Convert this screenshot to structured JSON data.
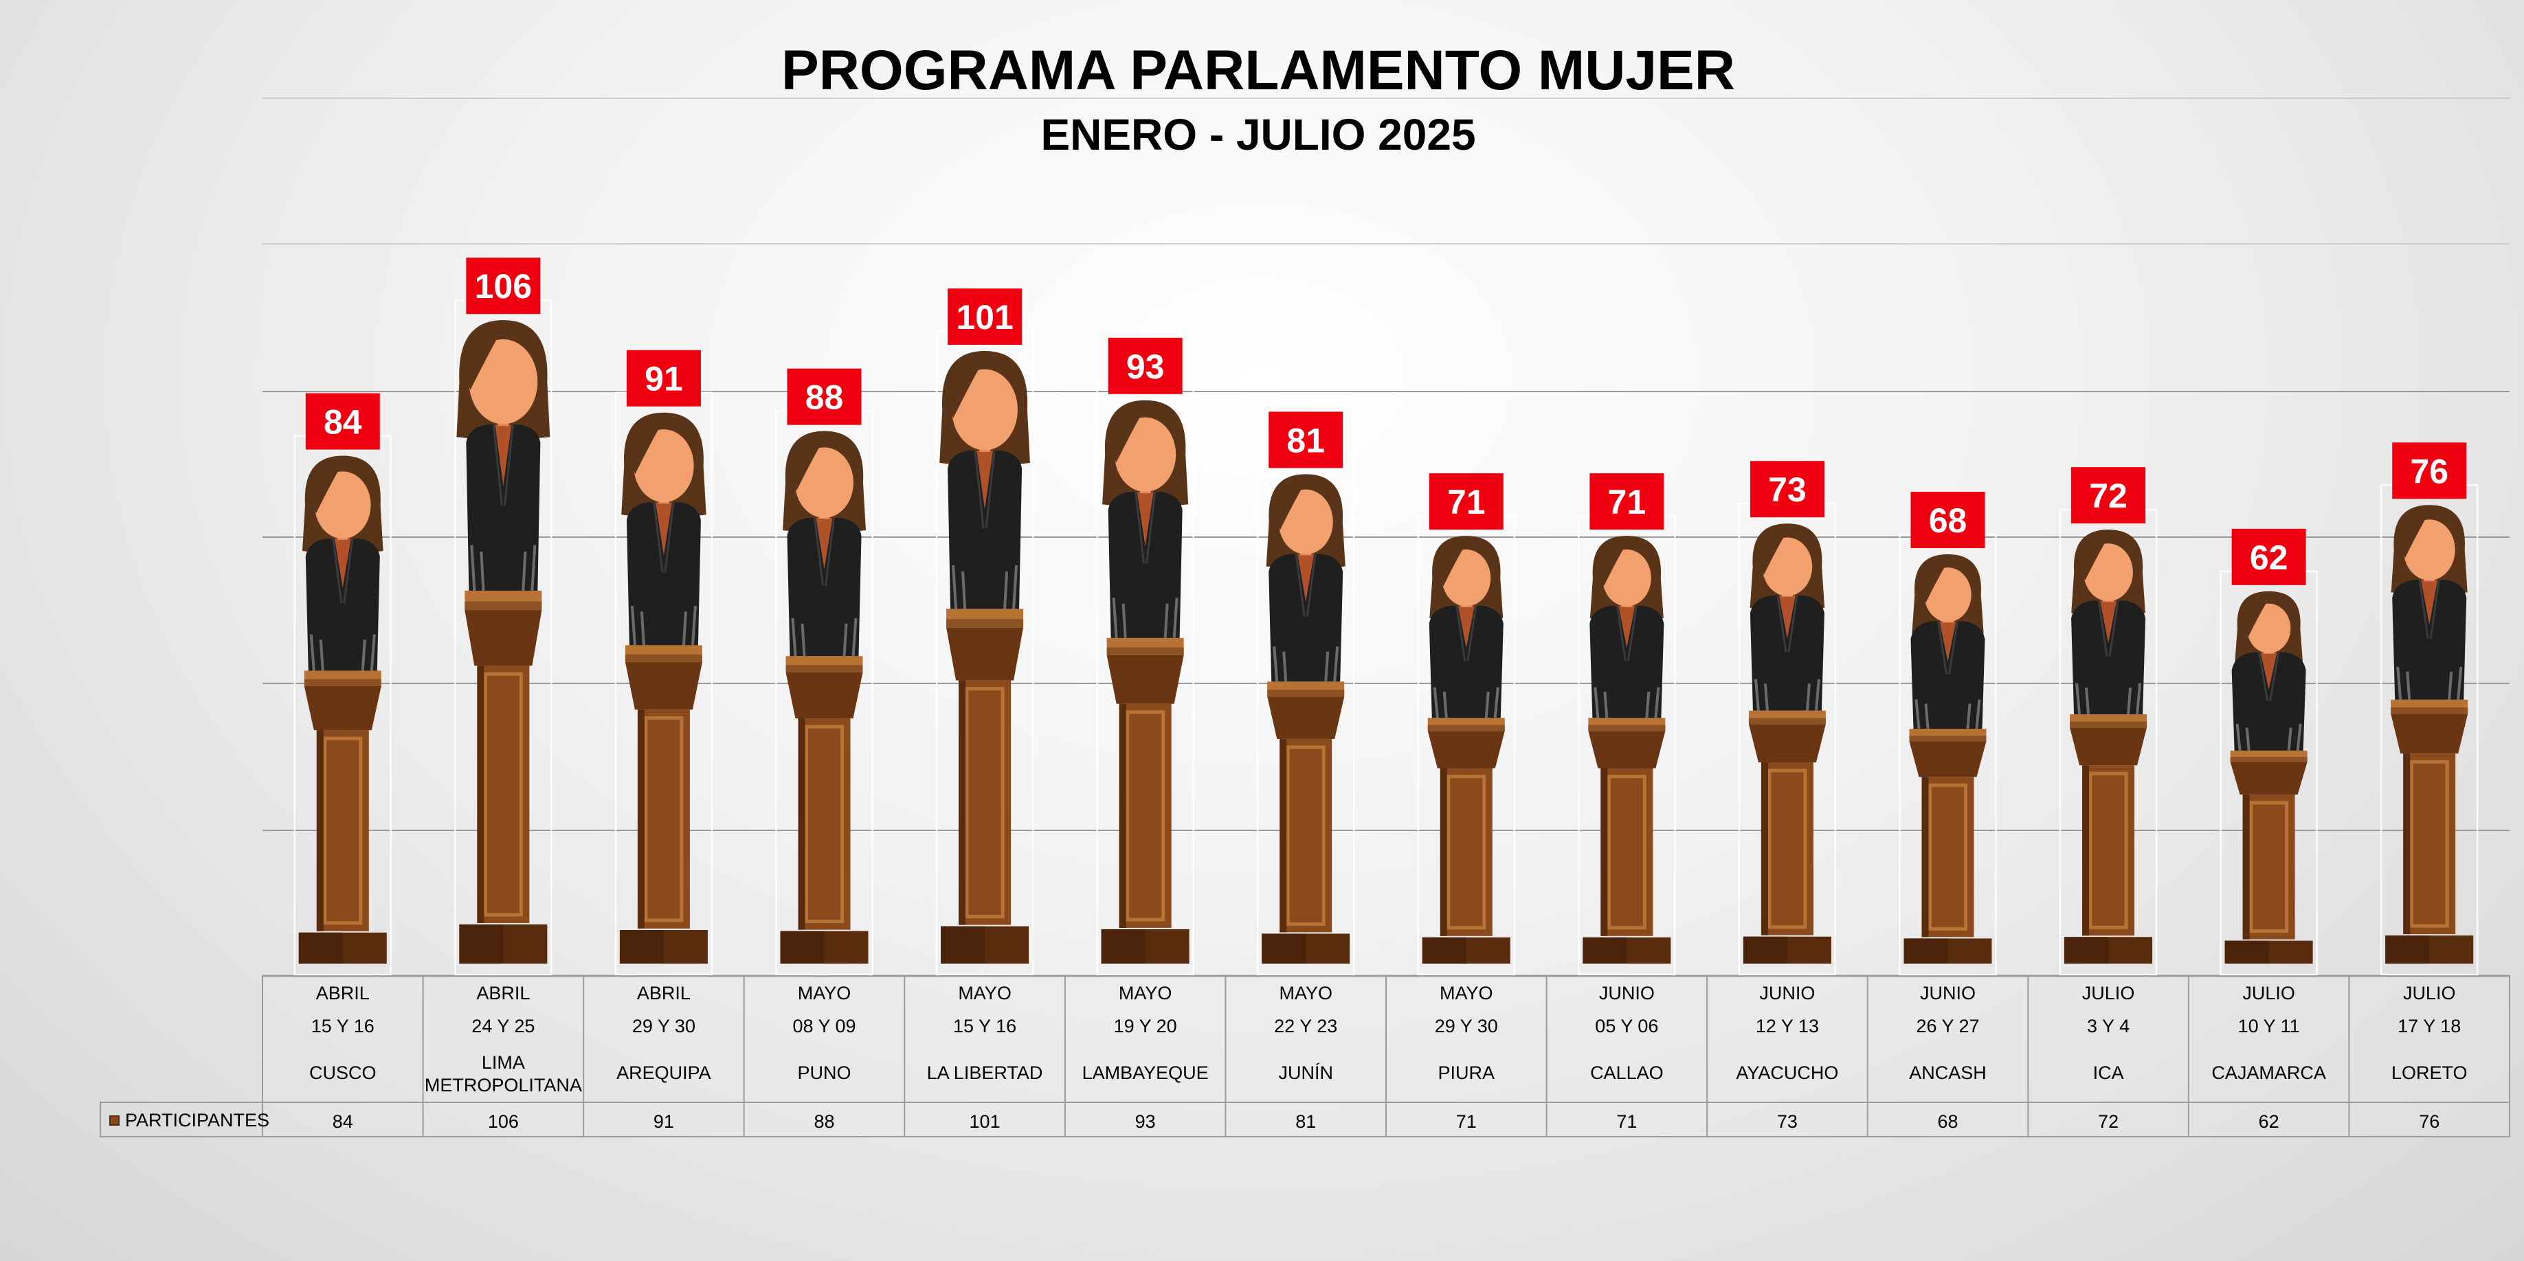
{
  "chart_data": {
    "type": "bar",
    "title": "PROGRAMA PARLAMENTO MUJER",
    "subtitle": "ENERO - JULIO 2025",
    "series": [
      {
        "name": "PARTICIPANTES",
        "values": [
          84,
          106,
          91,
          88,
          101,
          93,
          81,
          71,
          71,
          73,
          68,
          72,
          62,
          76
        ]
      }
    ],
    "categories": [
      {
        "month": "ABRIL",
        "days": "15 Y 16",
        "place": [
          "CUSCO"
        ]
      },
      {
        "month": "ABRIL",
        "days": "24 Y 25",
        "place": [
          "LIMA",
          "METROPOLITANA"
        ]
      },
      {
        "month": "ABRIL",
        "days": "29 Y 30",
        "place": [
          "AREQUIPA"
        ]
      },
      {
        "month": "MAYO",
        "days": "08 Y 09",
        "place": [
          "PUNO"
        ]
      },
      {
        "month": "MAYO",
        "days": "15 Y 16",
        "place": [
          "LA LIBERTAD"
        ]
      },
      {
        "month": "MAYO",
        "days": "19 Y 20",
        "place": [
          "LAMBAYEQUE"
        ]
      },
      {
        "month": "MAYO",
        "days": "22 Y 23",
        "place": [
          "JUNÍN"
        ]
      },
      {
        "month": "MAYO",
        "days": "29 Y 30",
        "place": [
          "PIURA"
        ]
      },
      {
        "month": "JUNIO",
        "days": "05 Y 06",
        "place": [
          "CALLAO"
        ]
      },
      {
        "month": "JUNIO",
        "days": "12 Y 13",
        "place": [
          "AYACUCHO"
        ]
      },
      {
        "month": "JUNIO",
        "days": "26 Y 27",
        "place": [
          "ANCASH"
        ]
      },
      {
        "month": "JULIO",
        "days": "3 Y 4",
        "place": [
          "ICA"
        ]
      },
      {
        "month": "JULIO",
        "days": "10 Y 11",
        "place": [
          "CAJAMARCA"
        ]
      },
      {
        "month": "JULIO",
        "days": "17 Y 18",
        "place": [
          "LORETO"
        ]
      }
    ],
    "xlabel": "",
    "ylabel": "",
    "ylim": [
      0,
      120
    ],
    "grid": true,
    "legend": "data-table-left",
    "colors": {
      "label_bg": "#ef0010",
      "label_text": "#ffffff",
      "podium": "#8b4a1c",
      "podium_dark": "#5a2c0e",
      "podium_light": "#b87334",
      "suit": "#1f1f1f",
      "skin": "#f2a06e",
      "hair": "#5a3418",
      "blouse": "#b0512a"
    }
  }
}
